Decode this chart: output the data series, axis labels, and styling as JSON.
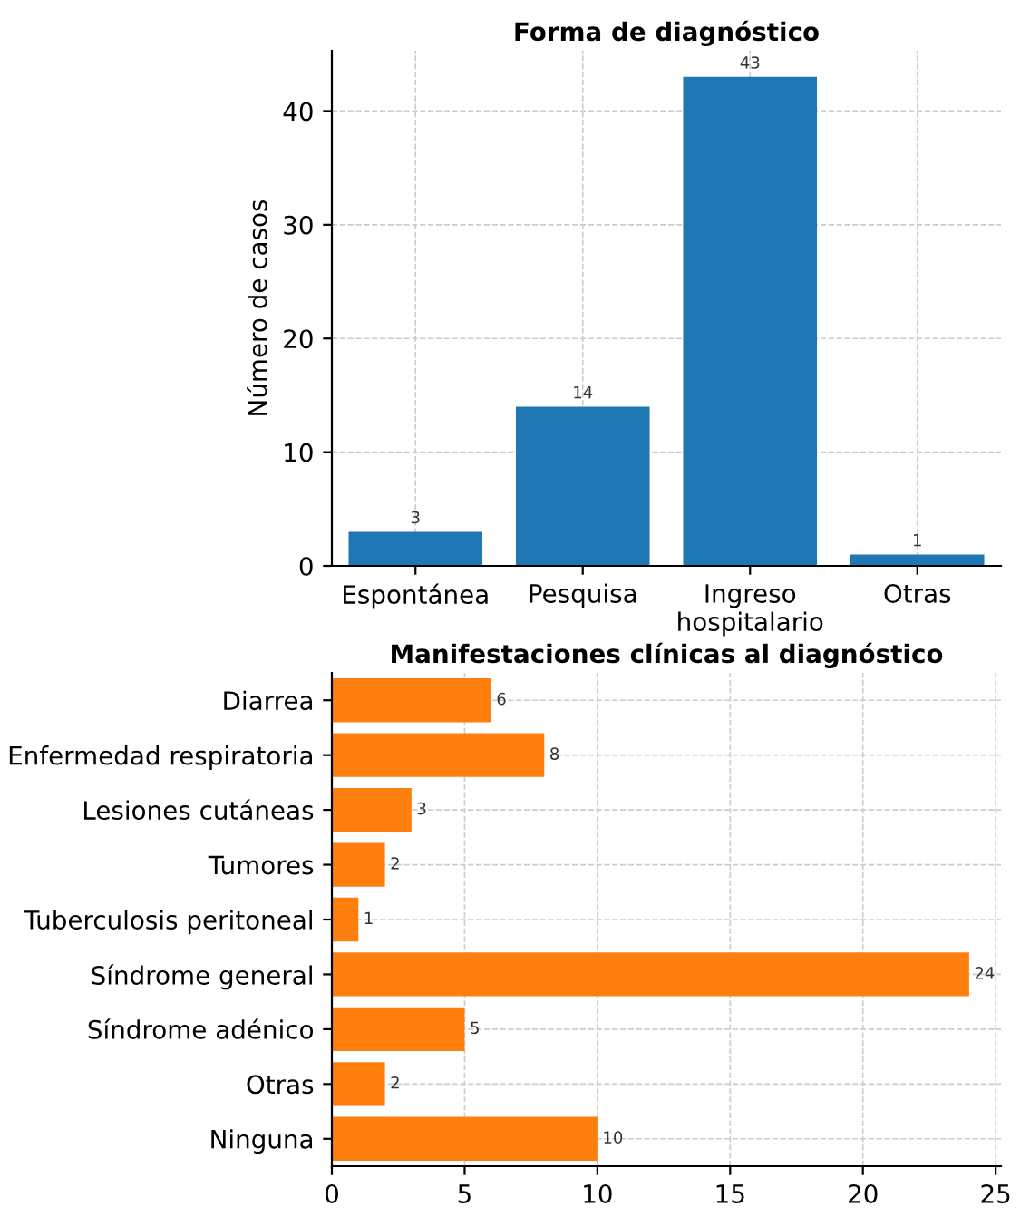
{
  "chart_data": [
    {
      "type": "bar",
      "title": "Forma de diagnóstico",
      "ylabel": "Número de casos",
      "categories": [
        "Espontánea",
        "Pesquisa",
        "Ingreso hospitalario",
        "Otras"
      ],
      "values": [
        3,
        14,
        43,
        1
      ],
      "color": "#1f77b4",
      "ylim": [
        0,
        45.3
      ],
      "yticks": [
        0,
        10,
        20,
        30,
        40
      ],
      "grid": true,
      "data_labels": true
    },
    {
      "type": "bar",
      "orientation": "horizontal",
      "title": "Manifestaciones clínicas al diagnóstico",
      "categories": [
        "Diarrea",
        "Enfermedad respiratoria",
        "Lesiones cutáneas",
        "Tumores",
        "Tuberculosis peritoneal",
        "Síndrome general",
        "Síndrome adénico",
        "Otras",
        "Ninguna"
      ],
      "values": [
        6,
        8,
        3,
        2,
        1,
        24,
        5,
        2,
        10
      ],
      "color": "#ff7f0e",
      "xlim": [
        0,
        25.2
      ],
      "xticks": [
        0,
        5,
        10,
        15,
        20,
        25
      ],
      "grid": true,
      "data_labels": true
    }
  ]
}
